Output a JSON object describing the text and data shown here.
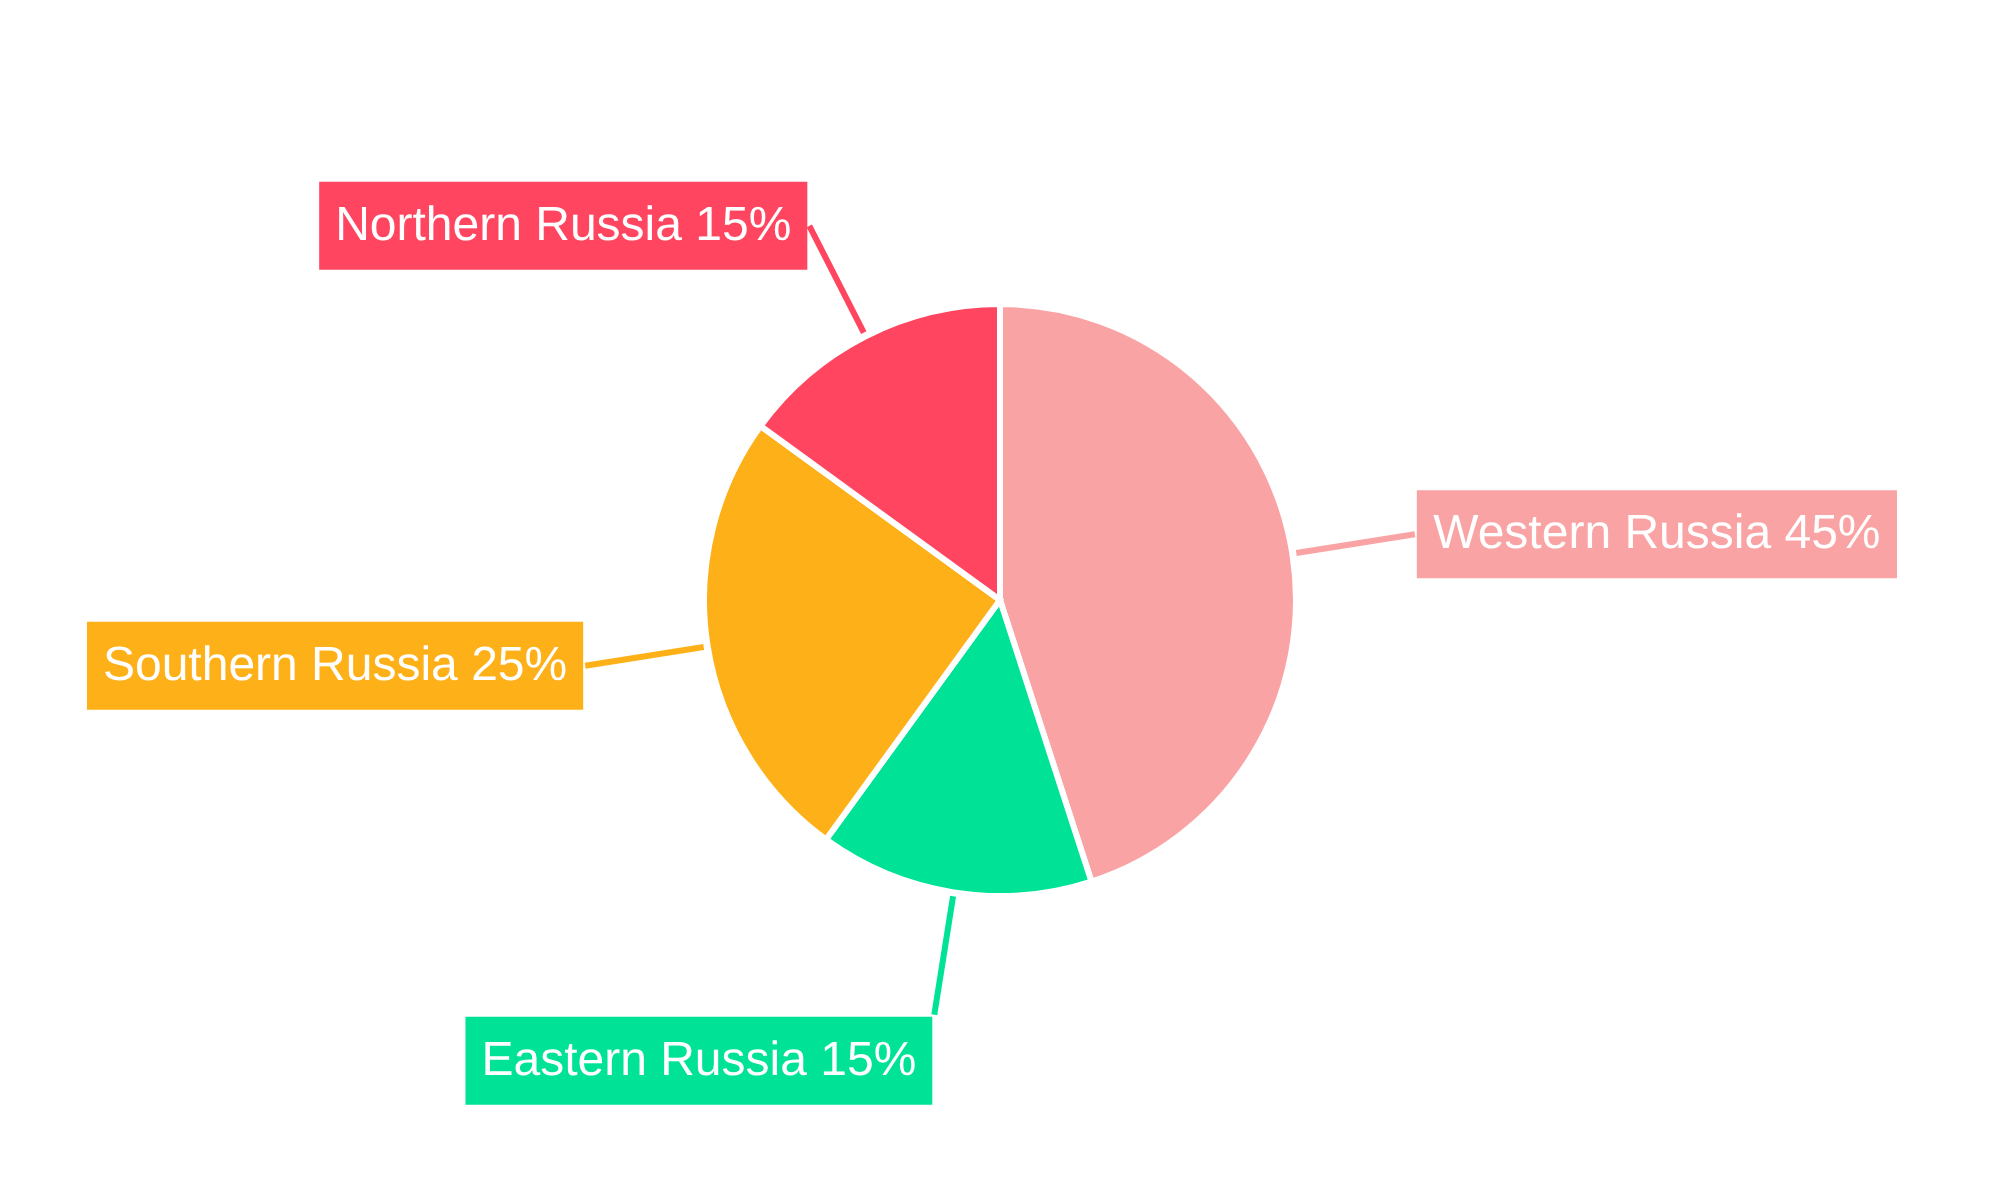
{
  "chart_data": {
    "type": "pie",
    "categories": [
      "Western Russia",
      "Eastern Russia",
      "Southern Russia",
      "Northern Russia"
    ],
    "values": [
      45,
      15,
      25,
      15
    ],
    "colors": [
      "#f9a3a4",
      "#00e396",
      "#feb019",
      "#ff4560"
    ],
    "value_labels": [
      "45%",
      "15%",
      "25%",
      "15%"
    ]
  }
}
